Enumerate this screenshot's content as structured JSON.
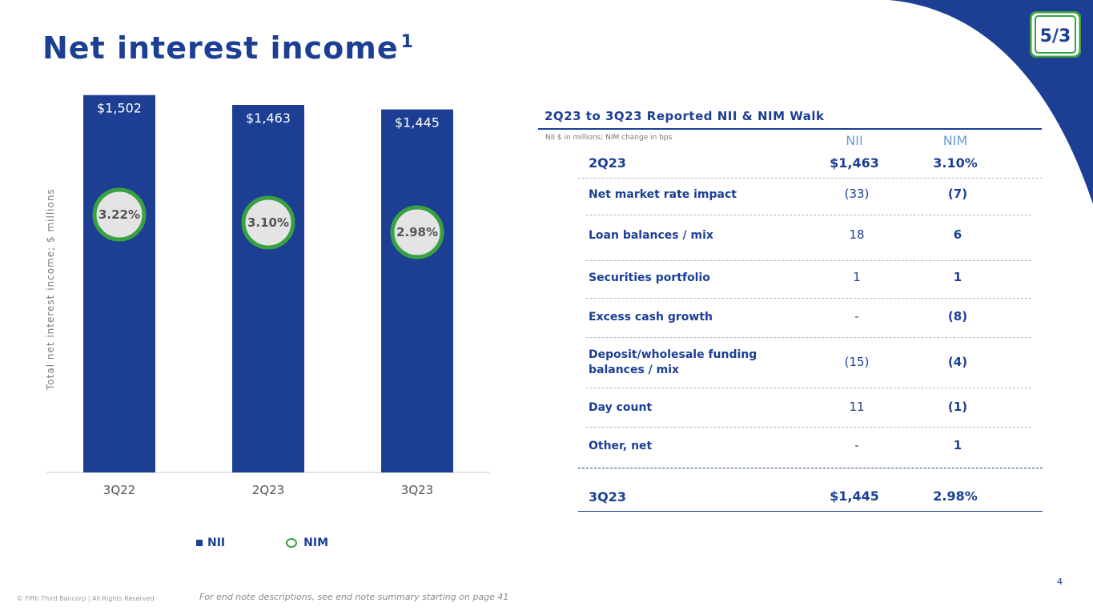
{
  "title": "Net interest income",
  "title_sup": "1",
  "colors": {
    "brand_blue": "#1c3f94",
    "nim_green": "#3aa142",
    "nim_fill": "#e4e4e4",
    "header_light_blue": "#6e9bd5"
  },
  "chart_data": {
    "type": "bar",
    "ylabel": "Total net interest income; $ millions",
    "categories": [
      "3Q22",
      "2Q23",
      "3Q23"
    ],
    "series": [
      {
        "name": "NII",
        "values": [
          1502,
          1463,
          1445
        ],
        "labels": [
          "$1,502",
          "$1,463",
          "$1,445"
        ]
      },
      {
        "name": "NIM",
        "values": [
          3.22,
          3.1,
          2.98
        ],
        "labels": [
          "3.22%",
          "3.10%",
          "2.98%"
        ]
      }
    ],
    "ylim": [
      0,
      1600
    ],
    "legend": [
      "NII",
      "NIM"
    ]
  },
  "walk": {
    "title": "2Q23 to 3Q23 Reported NII & NIM Walk",
    "subtitle": "NII $ in millions; NIM change in bps",
    "col_nii": "NII",
    "col_nim": "NIM",
    "start": {
      "label": "2Q23",
      "nii": "$1,463",
      "nim": "3.10%"
    },
    "rows": [
      {
        "label": "Net market rate impact",
        "nii": "(33)",
        "nim": "(7)"
      },
      {
        "label": "Loan balances / mix",
        "nii": "18",
        "nim": "6"
      },
      {
        "label": "Securities portfolio",
        "nii": "1",
        "nim": "1"
      },
      {
        "label": "Excess cash growth",
        "nii": "-",
        "nim": "(8)"
      },
      {
        "label": "Deposit/wholesale funding balances / mix",
        "nii": "(15)",
        "nim": "(4)"
      },
      {
        "label": "Day count",
        "nii": "11",
        "nim": "(1)"
      },
      {
        "label": "Other, net",
        "nii": "-",
        "nim": "1"
      }
    ],
    "end": {
      "label": "3Q23",
      "nii": "$1,445",
      "nim": "2.98%"
    }
  },
  "footer": {
    "copyright": "© Fifth Third Bancorp | All Rights Reserved",
    "footnote": "For end note descriptions, see end note summary starting on page 41",
    "page": "4"
  },
  "logo": {
    "icon": "fifth-third-logo-icon",
    "text": "5/3"
  }
}
